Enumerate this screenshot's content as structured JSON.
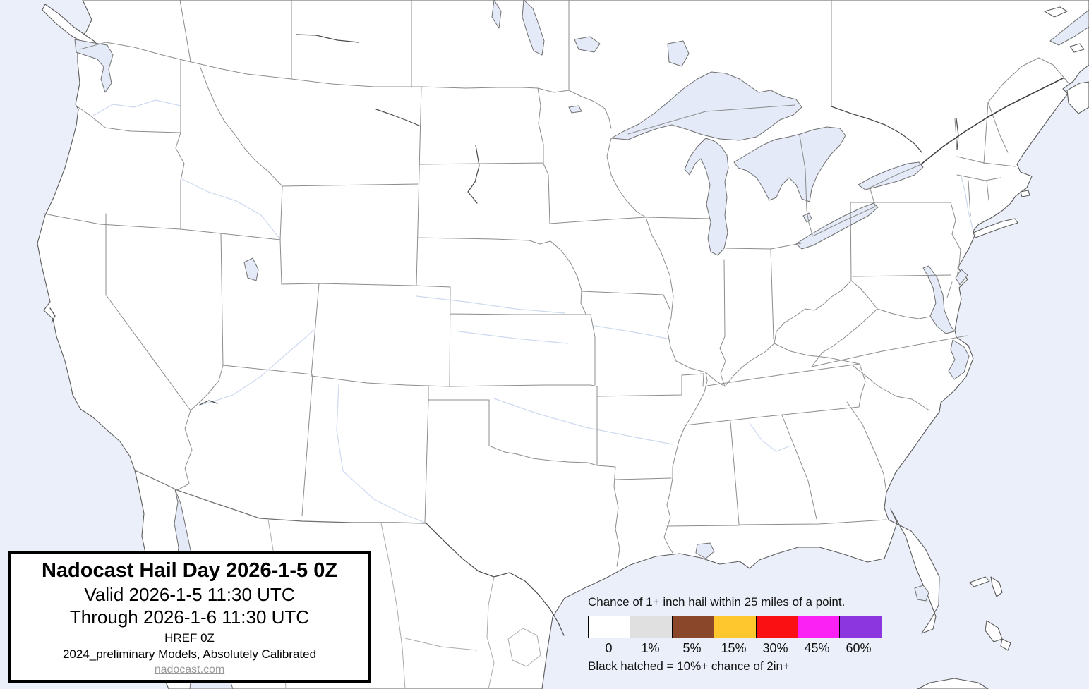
{
  "title_box": {
    "title": "Nadocast Hail Day 2026-1-5 0Z",
    "valid": "Valid 2026-1-5 11:30 UTC",
    "through": "Through 2026-1-6 11:30 UTC",
    "model": "HREF 0Z",
    "calibration": "2024_preliminary Models, Absolutely Calibrated",
    "website": "nadocast.com"
  },
  "legend": {
    "title": "Chance of 1+ inch hail within 25 miles of a point.",
    "note": "Black hatched = 10%+ chance of 2in+",
    "bins": [
      {
        "label": "0",
        "color": "#FFFFFF"
      },
      {
        "label": "1%",
        "color": "#E0E0E0"
      },
      {
        "label": "5%",
        "color": "#8A4729"
      },
      {
        "label": "15%",
        "color": "#FFC72E"
      },
      {
        "label": "30%",
        "color": "#FA0F13"
      },
      {
        "label": "45%",
        "color": "#FB21F5"
      },
      {
        "label": "60%",
        "color": "#8C36E0"
      }
    ]
  },
  "map": {
    "forecast_coverage": "no probability contours shown (blank forecast)",
    "colors": {
      "water": "#EBEFF9",
      "lakewater": "#E4EAF7",
      "land": "#FFFFFF",
      "coast": "#5B5B5B",
      "stateline": "#8C8C8C",
      "mexline": "#ABABAB",
      "riverlight": "#CCD9EF"
    }
  }
}
